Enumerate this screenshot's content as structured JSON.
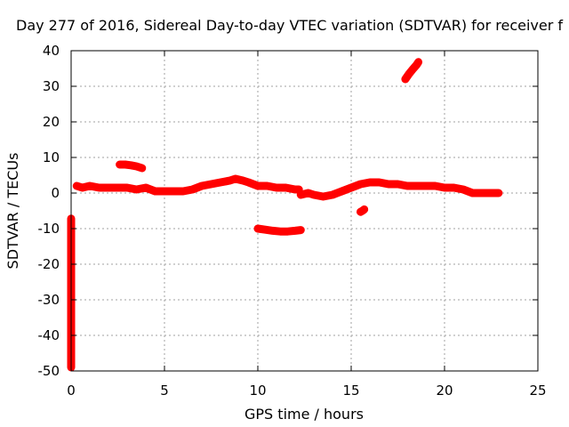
{
  "chart_data": {
    "type": "scatter",
    "title": "Day 277 of 2016, Sidereal Day-to-day VTEC variation (SDTVAR) for receiver f",
    "xlabel": "GPS time / hours",
    "ylabel": "SDTVAR / TECUs",
    "xlim": [
      0,
      25
    ],
    "ylim": [
      -50,
      40
    ],
    "x_ticks": [
      0,
      5,
      10,
      15,
      20,
      25
    ],
    "y_ticks": [
      -50,
      -40,
      -30,
      -20,
      -10,
      0,
      10,
      20,
      30,
      40
    ],
    "x_tick_labels": [
      "0",
      "5",
      "10",
      "15",
      "20",
      "25"
    ],
    "y_tick_labels": [
      "-50",
      "-40",
      "-30",
      "-20",
      "-10",
      "0",
      "10",
      "20",
      "30",
      "40"
    ],
    "grid": true,
    "marker": "plus",
    "series_color": "#ff0000",
    "series": [
      {
        "segments": [
          {
            "x": [
              0.3,
              0.6,
              1.0,
              1.5,
              2.0,
              2.5,
              3.0,
              3.5,
              4.0,
              4.5,
              5.0,
              5.5,
              6.0,
              6.5,
              7.0,
              7.5,
              8.0,
              8.5,
              8.8,
              9.2,
              9.5,
              10.0,
              10.5,
              11.0,
              11.5,
              12.0,
              12.2
            ],
            "y": [
              2.0,
              1.5,
              2.0,
              1.5,
              1.5,
              1.5,
              1.5,
              1.0,
              1.5,
              0.5,
              0.5,
              0.5,
              0.5,
              1.0,
              2.0,
              2.5,
              3.0,
              3.5,
              4.0,
              3.5,
              3.0,
              2.0,
              2.0,
              1.5,
              1.5,
              1.0,
              1.0
            ]
          },
          {
            "x": [
              12.3,
              12.7,
              13.0,
              13.5,
              14.0,
              14.5,
              15.0,
              15.5,
              16.0,
              16.5,
              17.0,
              17.5,
              18.0,
              18.5,
              19.0,
              19.5,
              20.0,
              20.5,
              21.0,
              21.5,
              22.0,
              22.5,
              22.9
            ],
            "y": [
              -0.5,
              0.0,
              -0.5,
              -1.0,
              -0.5,
              0.5,
              1.5,
              2.5,
              3.0,
              3.0,
              2.5,
              2.5,
              2.0,
              2.0,
              2.0,
              2.0,
              1.5,
              1.5,
              1.0,
              0.0,
              0.0,
              0.0,
              0.0
            ]
          },
          {
            "x": [
              2.6,
              2.9,
              3.2,
              3.5,
              3.8
            ],
            "y": [
              8.0,
              8.0,
              7.8,
              7.5,
              7.0
            ]
          },
          {
            "x": [
              10.0,
              10.4,
              10.8,
              11.2,
              11.6,
              12.0,
              12.3
            ],
            "y": [
              -10.0,
              -10.3,
              -10.6,
              -10.8,
              -10.8,
              -10.6,
              -10.4
            ]
          },
          {
            "x": [
              15.5,
              15.6,
              15.7
            ],
            "y": [
              -5.3,
              -5.0,
              -4.6
            ]
          },
          {
            "x": [
              17.9,
              18.1,
              18.3,
              18.5,
              18.6
            ],
            "y": [
              32.0,
              33.5,
              34.8,
              36.0,
              36.8
            ]
          },
          {
            "x": [
              0.0,
              0.0,
              0.0,
              0.0
            ],
            "y": [
              -7.2,
              -33.0,
              -35.0,
              -49.0
            ]
          }
        ]
      }
    ]
  }
}
